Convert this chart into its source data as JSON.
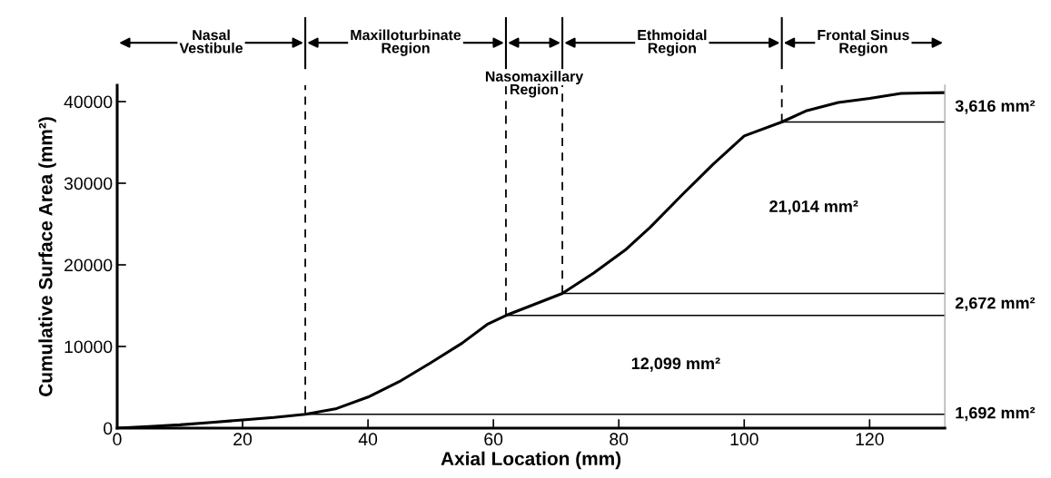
{
  "chart_data": {
    "type": "line",
    "xlabel": "Axial Location (mm)",
    "ylabel": "Cumulative Surface Area (mm²)",
    "xlim": [
      0,
      132
    ],
    "xticks": [
      0,
      20,
      40,
      60,
      80,
      100,
      120
    ],
    "ylim": [
      0,
      42000
    ],
    "yticks": [
      0,
      10000,
      20000,
      30000,
      40000
    ],
    "grid": false,
    "legend": false,
    "marker": "none",
    "line_style": "solid",
    "series": [
      {
        "color": "#000000",
        "x": [
          0,
          5,
          10,
          15,
          20,
          25,
          30,
          35,
          40,
          45,
          50,
          55,
          59,
          62,
          66,
          71,
          76,
          81,
          85,
          90,
          95,
          100,
          106,
          110,
          115,
          120,
          125,
          132
        ],
        "values": [
          0,
          200,
          400,
          700,
          1000,
          1300,
          1700,
          2400,
          3800,
          5700,
          8000,
          10400,
          12700,
          13800,
          15000,
          16500,
          19000,
          21800,
          24600,
          28500,
          32300,
          35800,
          37500,
          38900,
          39900,
          40400,
          41000,
          41100
        ]
      },
      {
        "color": "#000000",
        "x": [
          30,
          132
        ],
        "values": [
          1700,
          1700
        ]
      },
      {
        "color": "#000000",
        "x": [
          62,
          132
        ],
        "values": [
          13800,
          13800
        ]
      },
      {
        "color": "#000000",
        "x": [
          71,
          132
        ],
        "values": [
          16500,
          16500
        ]
      },
      {
        "color": "#000000",
        "x": [
          106,
          132
        ],
        "values": [
          37500,
          37500
        ]
      }
    ],
    "ref_lines": [
      {
        "axis": "x",
        "value": 30,
        "line_style": "dashed",
        "color": "#000000"
      },
      {
        "axis": "x",
        "value": 62,
        "line_style": "dashed",
        "color": "#000000"
      },
      {
        "axis": "x",
        "value": 71,
        "line_style": "dashed",
        "color": "#000000"
      },
      {
        "axis": "x",
        "value": 106,
        "line_style": "dashed",
        "color": "#000000"
      }
    ],
    "annotations": [
      "Nasal\nVestibule",
      "Maxilloturbinate\nRegion",
      "Nasomaxillary\nRegion",
      "Ethmoidal\nRegion",
      "Frontal Sinus\nRegion",
      {
        "text": "1,692 mm²",
        "x": 132,
        "y": 1700
      },
      "12,099 mm²",
      "2,672 mm²",
      "21,014 mm²",
      "3,616 mm²"
    ]
  }
}
